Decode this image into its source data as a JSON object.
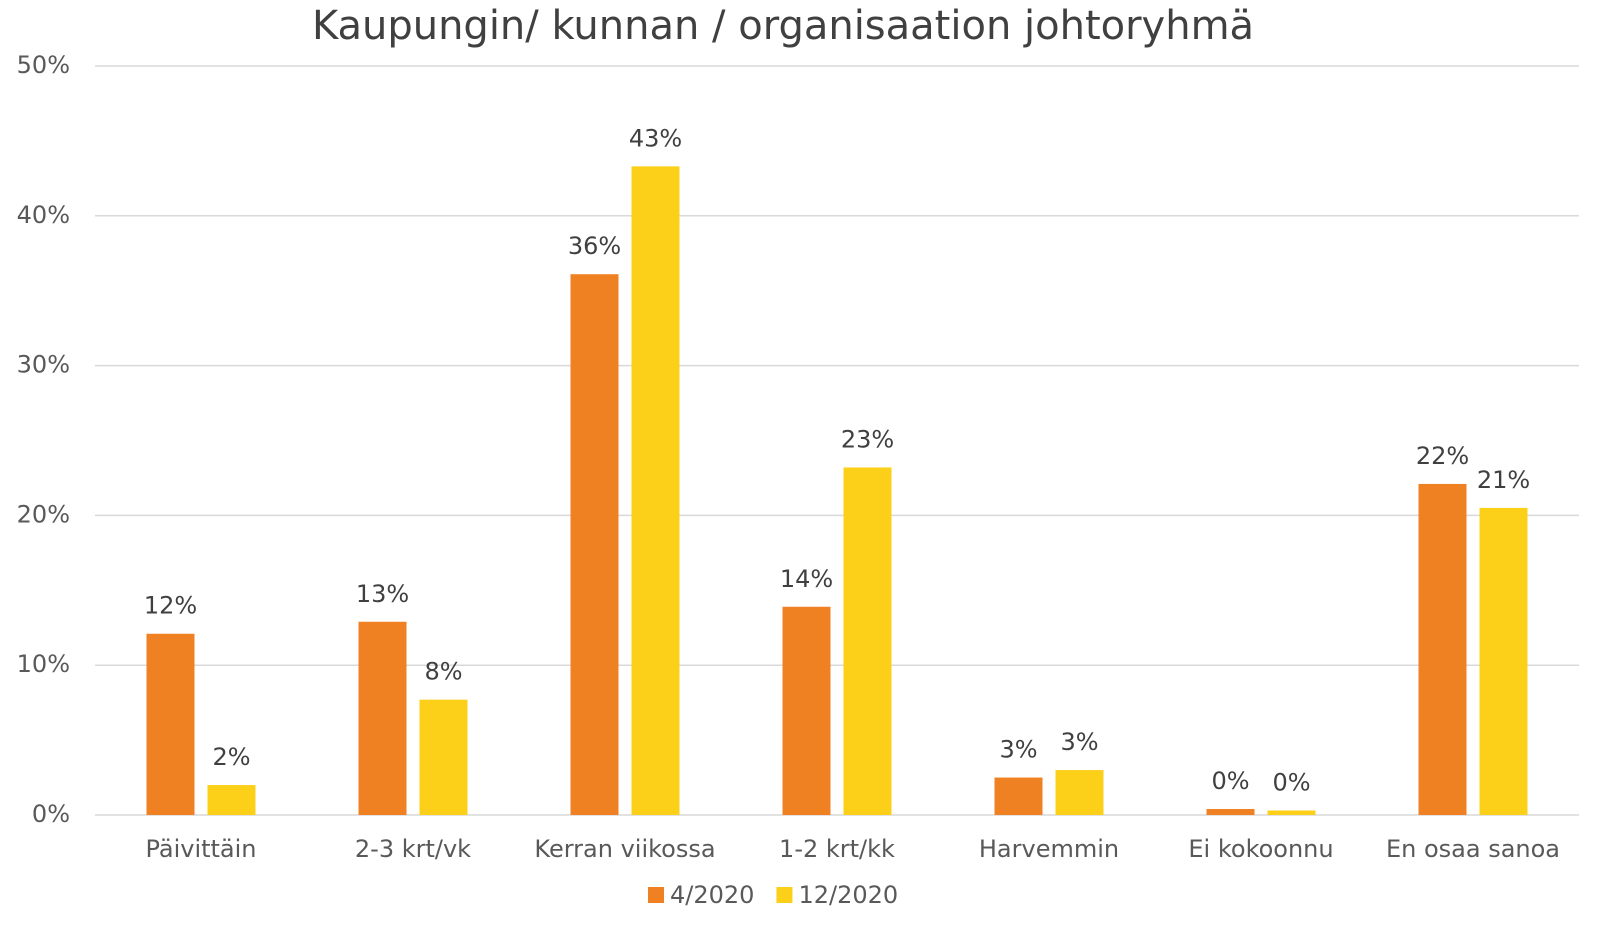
{
  "chart_data": {
    "type": "bar",
    "title": "Kaupungin/ kunnan / organisaation johtoryhmä",
    "categories": [
      "Päivittäin",
      "2-3 krt/vk",
      "Kerran viikossa",
      "1-2 krt/kk",
      "Harvemmin",
      "Ei kokoonnu",
      "En osaa sanoa"
    ],
    "series": [
      {
        "name": "4/2020",
        "color": "#f08122",
        "values": [
          12.1,
          12.9,
          36.1,
          13.9,
          2.5,
          0.4,
          22.1
        ],
        "value_labels": [
          "12%",
          "13%",
          "36%",
          "14%",
          "3%",
          "0%",
          "22%"
        ]
      },
      {
        "name": "12/2020",
        "color": "#fcd019",
        "values": [
          2.0,
          7.7,
          43.3,
          23.2,
          3.0,
          0.3,
          20.5
        ],
        "value_labels": [
          "2%",
          "8%",
          "43%",
          "23%",
          "3%",
          "0%",
          "21%"
        ]
      }
    ],
    "ylim": [
      0,
      50
    ],
    "yticks": [
      {
        "value": 0,
        "label": "0%"
      },
      {
        "value": 10,
        "label": "10%"
      },
      {
        "value": 20,
        "label": "20%"
      },
      {
        "value": 30,
        "label": "30%"
      },
      {
        "value": 40,
        "label": "40%"
      },
      {
        "value": 50,
        "label": "50%"
      }
    ],
    "grid": true,
    "legend": "bottom"
  }
}
